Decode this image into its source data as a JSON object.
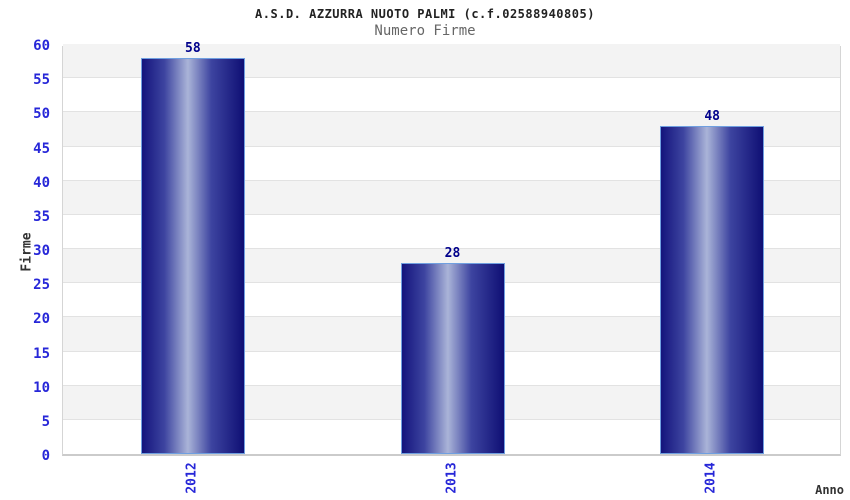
{
  "chart_data": {
    "type": "bar",
    "title": "A.S.D. AZZURRA NUOTO PALMI (c.f.02588940805)",
    "subtitle": "Numero Firme",
    "xlabel": "Anno",
    "ylabel": "Firme",
    "categories": [
      "2012",
      "2013",
      "2014"
    ],
    "values": [
      58,
      28,
      48
    ],
    "ylim": [
      0,
      60
    ],
    "ytick_step": 5,
    "grid": "horizontal-bands-alternating",
    "legend": "none",
    "x_tick_rotation_deg": -90,
    "colors": {
      "bar_dark": "#14147C",
      "bar_dark_right": "#0F0F74",
      "bar_mid": "#3D44A0",
      "bar_highlight": "#AAB4D8",
      "bar_border": "#6F9FE0",
      "value_label": "#00008B",
      "tick_label": "#2727D8",
      "title": "#222222",
      "subtitle": "#666666",
      "axis_title": "#333333",
      "band_gray": "#F3F3F3",
      "band_white": "#FFFFFF",
      "gridline": "#E2E2E2",
      "plot_border": "#D5D5D5"
    }
  }
}
